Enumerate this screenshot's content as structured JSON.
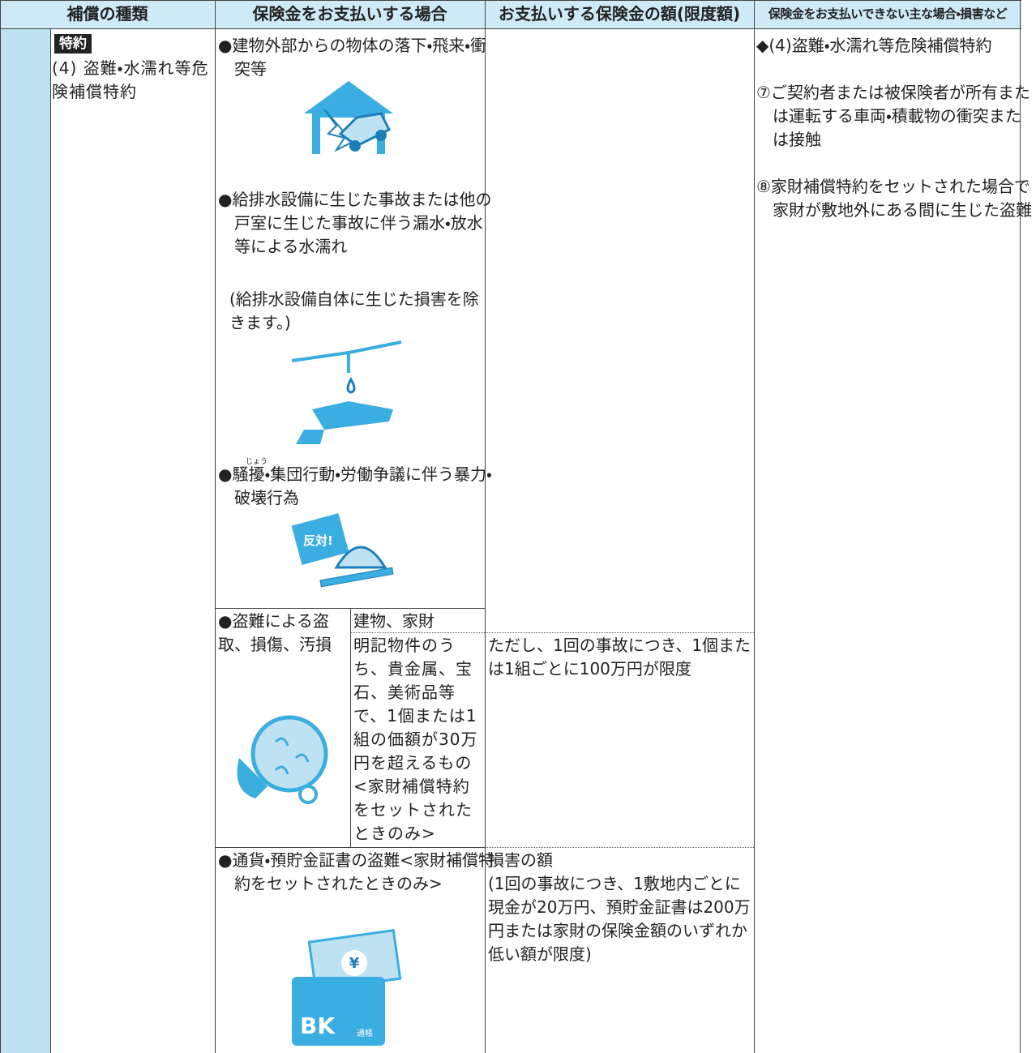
{
  "header": [
    "補償の種類",
    "保険金をお支払いする場合",
    "お支払いする保険金の額(限度額)",
    "保険金をお支払いできない主な場合・損害など"
  ],
  "coverage": {
    "badge": "特約",
    "name": "(4) 盗難・水濡れ等危険補償特約"
  },
  "cases": [
    {
      "text": "●建物外部からの物体の落下・飛来・衝突等"
    },
    {
      "text": "●給排水設備に生じた事故または他の戸室に生じた事故に伴う漏水・放水等による水濡れ",
      "note": "(給排水設備自体に生じた損害を除きます。)"
    },
    {
      "prefix": "●騒",
      "ruby_base": "擾",
      "ruby": "じょう",
      "rest": "・集団行動・労働争議に伴う暴力・破壊行為",
      "icon_text": "反対!"
    },
    {
      "text": "●盗難による盗取、損傷、汚損",
      "objects": [
        "建物、家財",
        "明記物件のうち、貴金属、宝石、美術品等で、1個または1組の価額が30万円を超えるもの<家財補償特約をセットされたときのみ>"
      ],
      "amount": "ただし、1回の事故につき、1個または1組ごとに100万円が限度"
    },
    {
      "text": "●通貨・預貯金証書の盗難<家財補償特約をセットされたときのみ>",
      "amount": "損害の額",
      "amount_note": "(1回の事故につき、1敷地内ごとに現金が20万円、預貯金証書は200万円または家財の保険金額のいずれか低い額が限度)",
      "icon_texts": [
        "¥",
        "BK",
        "通帳"
      ]
    }
  ],
  "exclusions": {
    "title": "◆(4)盗難・水濡れ等危険補償特約",
    "items": [
      "⑦ご契約者または被保険者が所有または運転する車両・積載物の衝突または接触",
      "⑧家財補償特約をセットされた場合で家財が敷地外にある間に生じた盗難"
    ]
  }
}
